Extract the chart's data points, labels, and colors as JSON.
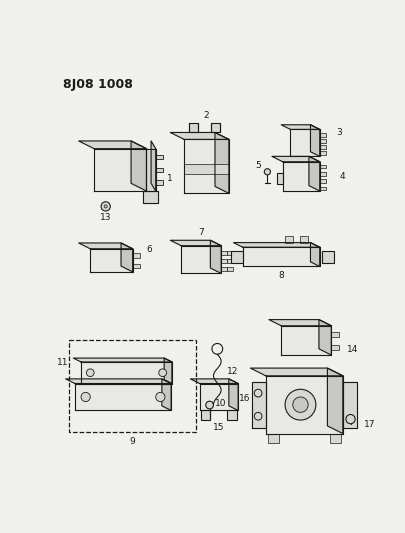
{
  "title": "8J08 1008",
  "bg": "#f0f0ec",
  "lc": "#1a1a1a",
  "fc_light": "#e8e8e4",
  "fc_mid": "#d8d8d2",
  "fc_dark": "#c8c8c2",
  "fig_w": 4.06,
  "fig_h": 5.33,
  "dpi": 100
}
